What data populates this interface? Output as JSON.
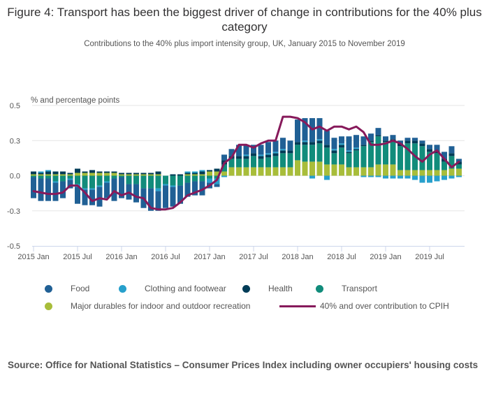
{
  "title": "Figure 4: Transport has been the biggest driver of change in contributions for the 40% plus category",
  "subtitle": "Contributions to the 40% plus import intensity group, UK, January 2015 to November 2019",
  "source": "Source: Office for National Statistics – Consumer Prices Index including owner occupiers' housing costs",
  "colors": {
    "Food": "#206095",
    "Clothing and footwear": "#27a0cc",
    "Health": "#003c57",
    "Transport": "#118c7b",
    "Major durables for indoor and outdoor recreation": "#a8bd3a",
    "line": "#871a5b",
    "grid": "#e6e6e6",
    "axis": "#ccd6eb"
  },
  "chart_data": {
    "type": "bar",
    "stacked": true,
    "title": "Figure 4: Transport has been the biggest driver of change in contributions for the 40% plus category",
    "ylabel": "% and percentage points",
    "xlabel": "",
    "ylim": [
      -0.5,
      0.5
    ],
    "yticks": [
      0.5,
      0.25,
      0.0,
      -0.25,
      -0.5
    ],
    "ytick_labels": [
      "0.5",
      "0.3",
      "0.0",
      "-0.3",
      "-0.5"
    ],
    "grid": true,
    "legend_position": "bottom",
    "x_tick_labels": [
      "2015 Jan",
      "2015 Jul",
      "2016 Jan",
      "2016 Jul",
      "2017 Jan",
      "2017 Jul",
      "2018 Jan",
      "2018 Jul",
      "2019 Jan",
      "2019 Jul"
    ],
    "x_tick_indices": [
      0,
      6,
      12,
      18,
      24,
      30,
      36,
      42,
      48,
      54
    ],
    "categories": [
      "2015 Jan",
      "2015 Feb",
      "2015 Mar",
      "2015 Apr",
      "2015 May",
      "2015 Jun",
      "2015 Jul",
      "2015 Aug",
      "2015 Sep",
      "2015 Oct",
      "2015 Nov",
      "2015 Dec",
      "2016 Jan",
      "2016 Feb",
      "2016 Mar",
      "2016 Apr",
      "2016 May",
      "2016 Jun",
      "2016 Jul",
      "2016 Aug",
      "2016 Sep",
      "2016 Oct",
      "2016 Nov",
      "2016 Dec",
      "2017 Jan",
      "2017 Feb",
      "2017 Mar",
      "2017 Apr",
      "2017 May",
      "2017 Jun",
      "2017 Jul",
      "2017 Aug",
      "2017 Sep",
      "2017 Oct",
      "2017 Nov",
      "2017 Dec",
      "2018 Jan",
      "2018 Feb",
      "2018 Mar",
      "2018 Apr",
      "2018 May",
      "2018 Jun",
      "2018 Jul",
      "2018 Aug",
      "2018 Sep",
      "2018 Oct",
      "2018 Nov",
      "2018 Dec",
      "2019 Jan",
      "2019 Feb",
      "2019 Mar",
      "2019 Apr",
      "2019 May",
      "2019 Jun",
      "2019 Jul",
      "2019 Aug",
      "2019 Sep",
      "2019 Oct",
      "2019 Nov"
    ],
    "series": [
      {
        "name": "Major durables for indoor and outdoor recreation",
        "values": [
          0.01,
          0.01,
          0.01,
          0.01,
          0.01,
          0.01,
          0.02,
          0.02,
          0.02,
          0.02,
          0.02,
          0.02,
          0.01,
          0.01,
          0.01,
          0.01,
          0.01,
          0.01,
          0.0,
          0.0,
          0.0,
          0.01,
          0.01,
          0.01,
          0.03,
          0.03,
          0.03,
          0.06,
          0.06,
          0.06,
          0.06,
          0.06,
          0.06,
          0.06,
          0.06,
          0.06,
          0.11,
          0.1,
          0.1,
          0.1,
          0.08,
          0.08,
          0.08,
          0.06,
          0.06,
          0.06,
          0.06,
          0.08,
          0.08,
          0.08,
          0.04,
          0.04,
          0.04,
          0.04,
          0.04,
          0.04,
          0.04,
          0.05,
          0.05
        ]
      },
      {
        "name": "Transport",
        "values": [
          -0.01,
          -0.02,
          -0.02,
          -0.04,
          -0.04,
          -0.02,
          -0.06,
          -0.09,
          -0.09,
          -0.07,
          -0.04,
          -0.02,
          -0.01,
          -0.06,
          -0.06,
          -0.09,
          -0.09,
          -0.09,
          -0.06,
          -0.07,
          -0.07,
          -0.05,
          -0.04,
          -0.04,
          -0.02,
          -0.02,
          0.05,
          0.06,
          0.06,
          0.06,
          0.08,
          0.06,
          0.07,
          0.08,
          0.1,
          0.1,
          0.11,
          0.12,
          0.12,
          0.13,
          0.12,
          0.08,
          0.12,
          0.1,
          0.12,
          0.15,
          0.18,
          0.2,
          0.16,
          0.17,
          0.17,
          0.19,
          0.19,
          0.17,
          0.13,
          0.12,
          0.06,
          0.09,
          0.03
        ]
      },
      {
        "name": "Health",
        "values": [
          0.02,
          0.01,
          0.02,
          0.02,
          0.02,
          0.01,
          0.03,
          0.01,
          0.02,
          0.01,
          0.01,
          0.01,
          0.01,
          0.01,
          0.01,
          0.01,
          0.01,
          0.02,
          0.0,
          0.01,
          0.01,
          0.01,
          0.01,
          0.02,
          0.01,
          0.02,
          0.03,
          0.02,
          0.02,
          0.02,
          0.02,
          0.02,
          0.02,
          0.02,
          0.02,
          0.02,
          0.02,
          0.02,
          0.02,
          0.02,
          0.02,
          0.02,
          0.02,
          0.01,
          0.01,
          0.01,
          0.01,
          0.01,
          0.01,
          0.01,
          0.02,
          0.02,
          0.02,
          0.02,
          0.02,
          0.02,
          0.02,
          0.02,
          0.02
        ]
      },
      {
        "name": "Clothing and footwear",
        "values": [
          0.0,
          0.01,
          0.01,
          -0.01,
          0.0,
          -0.01,
          -0.02,
          -0.01,
          -0.01,
          -0.01,
          -0.01,
          0.0,
          0.0,
          0.0,
          0.0,
          0.0,
          0.0,
          -0.02,
          -0.01,
          -0.01,
          0.0,
          0.01,
          0.01,
          0.01,
          -0.03,
          -0.04,
          -0.01,
          0.0,
          0.0,
          0.01,
          0.0,
          0.01,
          0.01,
          0.01,
          0.01,
          0.0,
          0.0,
          0.01,
          -0.02,
          0.01,
          -0.03,
          0.01,
          0.01,
          0.01,
          0.01,
          -0.01,
          -0.01,
          -0.01,
          -0.02,
          -0.02,
          -0.02,
          -0.02,
          -0.03,
          -0.05,
          -0.05,
          -0.04,
          -0.03,
          -0.02,
          -0.01
        ]
      },
      {
        "name": "Food",
        "values": [
          -0.15,
          -0.16,
          -0.16,
          -0.13,
          -0.12,
          -0.06,
          -0.12,
          -0.11,
          -0.11,
          -0.14,
          -0.11,
          -0.16,
          -0.15,
          -0.11,
          -0.13,
          -0.14,
          -0.16,
          -0.14,
          -0.16,
          -0.14,
          -0.13,
          -0.1,
          -0.1,
          -0.1,
          -0.04,
          -0.02,
          0.04,
          0.05,
          0.08,
          0.07,
          0.06,
          0.07,
          0.08,
          0.08,
          0.08,
          0.07,
          0.16,
          0.16,
          0.17,
          0.15,
          0.1,
          0.08,
          0.05,
          0.1,
          0.09,
          0.06,
          0.05,
          0.05,
          0.03,
          0.03,
          0.02,
          0.02,
          0.02,
          0.02,
          0.03,
          0.04,
          0.05,
          0.05,
          0.02
        ]
      }
    ],
    "line": {
      "name": "40% and over contribution to CPIH",
      "values": [
        -0.11,
        -0.12,
        -0.13,
        -0.13,
        -0.12,
        -0.07,
        -0.07,
        -0.12,
        -0.18,
        -0.16,
        -0.17,
        -0.11,
        -0.14,
        -0.12,
        -0.15,
        -0.16,
        -0.23,
        -0.24,
        -0.24,
        -0.23,
        -0.19,
        -0.14,
        -0.12,
        -0.1,
        -0.07,
        -0.03,
        0.09,
        0.13,
        0.22,
        0.22,
        0.2,
        0.23,
        0.25,
        0.25,
        0.42,
        0.42,
        0.41,
        0.38,
        0.33,
        0.35,
        0.32,
        0.35,
        0.35,
        0.33,
        0.35,
        0.31,
        0.22,
        0.22,
        0.23,
        0.25,
        0.23,
        0.19,
        0.14,
        0.1,
        0.15,
        0.18,
        0.12,
        0.06,
        0.1
      ]
    }
  },
  "legend": [
    {
      "label": "Food",
      "type": "dot"
    },
    {
      "label": "Clothing and footwear",
      "type": "dot"
    },
    {
      "label": "Health",
      "type": "dot"
    },
    {
      "label": "Transport",
      "type": "dot"
    },
    {
      "label": "Major durables for indoor and outdoor recreation",
      "type": "dot"
    },
    {
      "label": "40% and over contribution to CPIH",
      "type": "line"
    }
  ]
}
